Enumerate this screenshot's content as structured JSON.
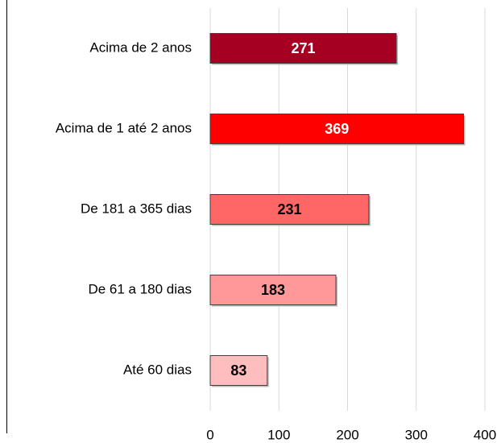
{
  "chart_data": {
    "type": "barh",
    "categories": [
      "Acima de 2 anos",
      "Acima de 1 até 2 anos",
      "De 181 a 365 dias",
      "De 61 a 180 dias",
      "Até 60 dias"
    ],
    "values": [
      271,
      369,
      231,
      183,
      83
    ],
    "colors": [
      "#a50021",
      "#ff0000",
      "#ff6666",
      "#ff9999",
      "#ffbdbd"
    ],
    "xlim": [
      0,
      400
    ],
    "xticks": [
      0,
      100,
      200,
      300,
      400
    ],
    "grid": true
  }
}
